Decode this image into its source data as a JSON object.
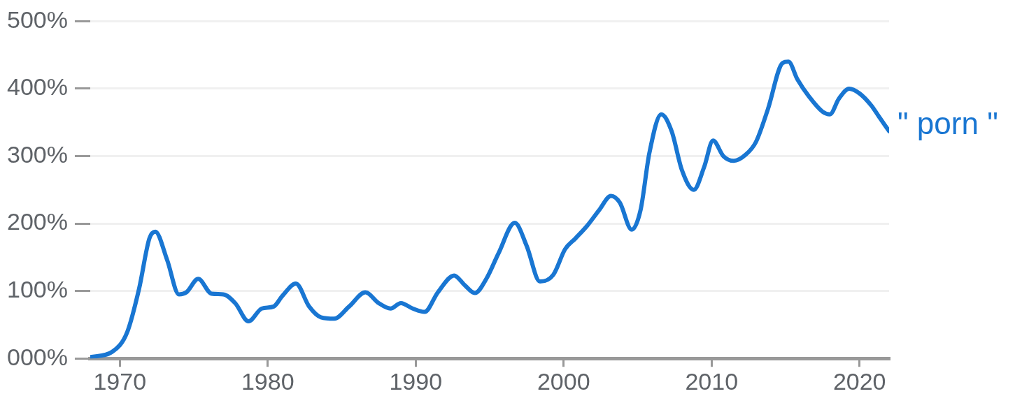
{
  "chart_data": {
    "type": "line",
    "x": [
      1968,
      1969.5,
      1970.5,
      1971.3,
      1972,
      1972.4,
      1973.2,
      1974,
      1974.5,
      1975.3,
      1976.2,
      1977,
      1977.8,
      1978.7,
      1979.6,
      1980.4,
      1981,
      1981.9,
      1982.8,
      1983.6,
      1984.5,
      1985.5,
      1986.6,
      1987.5,
      1988.3,
      1989,
      1989.8,
      1990.6,
      1991.5,
      1992.6,
      1993.3,
      1994,
      1994.8,
      1995.6,
      1996.7,
      1997.5,
      1998.4,
      1999.3,
      2000.1,
      2000.8,
      2001.6,
      2002.4,
      2003.2,
      2003.8,
      2004.6,
      2005.2,
      2005.8,
      2006.6,
      2007.3,
      2008,
      2008.8,
      2009.5,
      2010.1,
      2010.8,
      2011.5,
      2012.3,
      2013,
      2013.8,
      2014.8,
      2015.2,
      2015.8,
      2016.6,
      2017.5,
      2018,
      2018.6,
      2019.3,
      2020,
      2020.8,
      2021.3,
      2022
    ],
    "series": [
      {
        "name": "\" porn \"",
        "color": "#1976d2",
        "values": [
          2,
          10,
          39,
          103,
          178,
          188,
          146,
          95,
          98,
          118,
          96,
          95,
          82,
          55,
          74,
          77,
          93,
          111,
          77,
          61,
          59,
          77,
          98,
          82,
          74,
          82,
          74,
          69,
          98,
          123,
          109,
          97,
          119,
          156,
          201,
          167,
          114,
          124,
          162,
          178,
          197,
          220,
          241,
          231,
          191,
          220,
          305,
          362,
          337,
          279,
          250,
          284,
          323,
          300,
          293,
          302,
          321,
          369,
          438,
          440,
          414,
          388,
          366,
          362,
          385,
          400,
          393,
          375,
          359,
          337
        ]
      }
    ],
    "xlim": [
      1968,
      2022
    ],
    "xticks": [
      1970,
      1980,
      1990,
      2000,
      2010,
      2020
    ],
    "ylim": [
      0,
      500
    ],
    "yticks": [
      {
        "value": 0,
        "label": "000%"
      },
      {
        "value": 100,
        "label": "100%"
      },
      {
        "value": 200,
        "label": "200%"
      },
      {
        "value": 300,
        "label": "300%"
      },
      {
        "value": 400,
        "label": "400%"
      },
      {
        "value": 500,
        "label": "500%"
      }
    ],
    "grid": "y"
  }
}
